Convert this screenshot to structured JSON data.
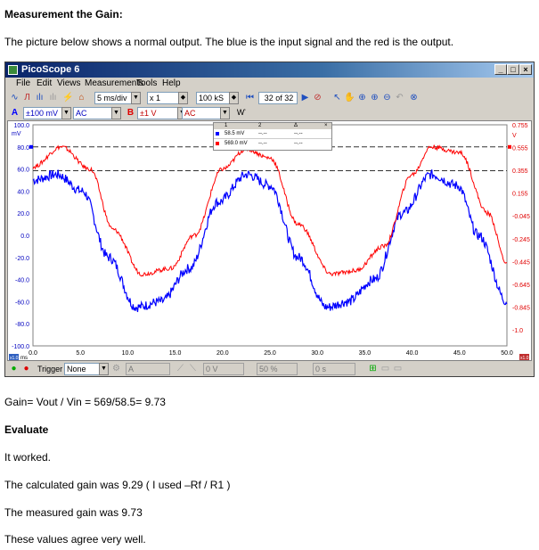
{
  "doc": {
    "heading": "Measurement the Gain:",
    "intro": "The picture below shows a normal output. The blue is the input signal and the red is the output.",
    "gain_line": "Gain= Vout / Vin = 569/58.5= 9.73",
    "evaluate_heading": "Evaluate",
    "line1": "It worked.",
    "line2": "The calculated gain was 9.29    ( I used –Rf / R1 )",
    "line3": "The measured gain was 9.73",
    "line4": "These values agree very well."
  },
  "window": {
    "title": "PicoScope 6",
    "menu": [
      "File",
      "Edit",
      "Views",
      "Measurements",
      "Tools",
      "Help"
    ]
  },
  "toolbar1": {
    "timebase": "5 ms/div",
    "zoom": "x 1",
    "samples": "100 kS",
    "buffer": "32  of 32"
  },
  "toolbar2": {
    "chA_label": "A",
    "chA_range": "±100 mV",
    "chA_coupling": "AC",
    "chB_label": "B",
    "chB_range": "±1 V",
    "chB_coupling": "AC"
  },
  "bottombar": {
    "trigger_label": "Trigger",
    "trigger_mode": "None",
    "trig_channel": "A",
    "trig_level": "0 V",
    "trig_pct": "50 %",
    "trig_delay": "0 s"
  },
  "rulers": {
    "headers": [
      "1",
      "2",
      "Δ"
    ],
    "row_a": [
      "58.5 mV",
      "--.--",
      "--.--"
    ],
    "row_b": [
      "569.0 mV",
      "--.--",
      "--.--"
    ]
  },
  "colors": {
    "input": "#0000ff",
    "output": "#ff0000"
  },
  "chart_data": {
    "type": "line",
    "xlabel": "ms",
    "xlim": [
      0,
      50
    ],
    "x_ticks": [
      "0.0",
      "5.0",
      "10.0",
      "15.0",
      "20.0",
      "25.0",
      "30.0",
      "35.0",
      "40.0",
      "45.0",
      "50.0"
    ],
    "left_axis": {
      "unit": "mV",
      "ylim": [
        -100,
        100
      ],
      "ticks": [
        "100.0",
        "80.0",
        "60.0",
        "40.0",
        "20.0",
        "0.0",
        "-20.0",
        "-40.0",
        "-60.0",
        "-80.0",
        "-100.0"
      ]
    },
    "right_axis": {
      "unit": "V",
      "ticks": [
        "0.755",
        "0.555",
        "0.355",
        "0.155",
        "-0.045",
        "-0.245",
        "-0.445",
        "-0.645",
        "-0.845",
        "-1.0"
      ]
    },
    "x_zoom_badge": "x1.0",
    "y_zoom_badge": "x1.0",
    "ruler_levels_mV": [
      80.0,
      58.5
    ],
    "series": [
      {
        "name": "A",
        "color": "#0000ff",
        "x": [
          0,
          2.5,
          5.2,
          8,
          10.9,
          13.5,
          16.5,
          19.5,
          22.6,
          25,
          28,
          31,
          33.2,
          36,
          39,
          42,
          44.8,
          47,
          50
        ],
        "y": [
          50,
          55,
          40,
          -20,
          -65,
          -60,
          -30,
          30,
          55,
          45,
          -20,
          -65,
          -60,
          -40,
          20,
          55,
          45,
          0,
          -60
        ]
      },
      {
        "name": "B",
        "color": "#ff0000",
        "x": [
          0,
          3,
          6,
          8.5,
          11.5,
          14.5,
          17,
          20,
          22.5,
          25,
          28,
          31.5,
          34,
          37,
          40,
          42,
          45,
          48,
          50
        ],
        "y": [
          62,
          80,
          60,
          5,
          -35,
          -30,
          0,
          60,
          78,
          70,
          10,
          -35,
          -32,
          -10,
          55,
          80,
          75,
          20,
          -25
        ]
      }
    ]
  }
}
